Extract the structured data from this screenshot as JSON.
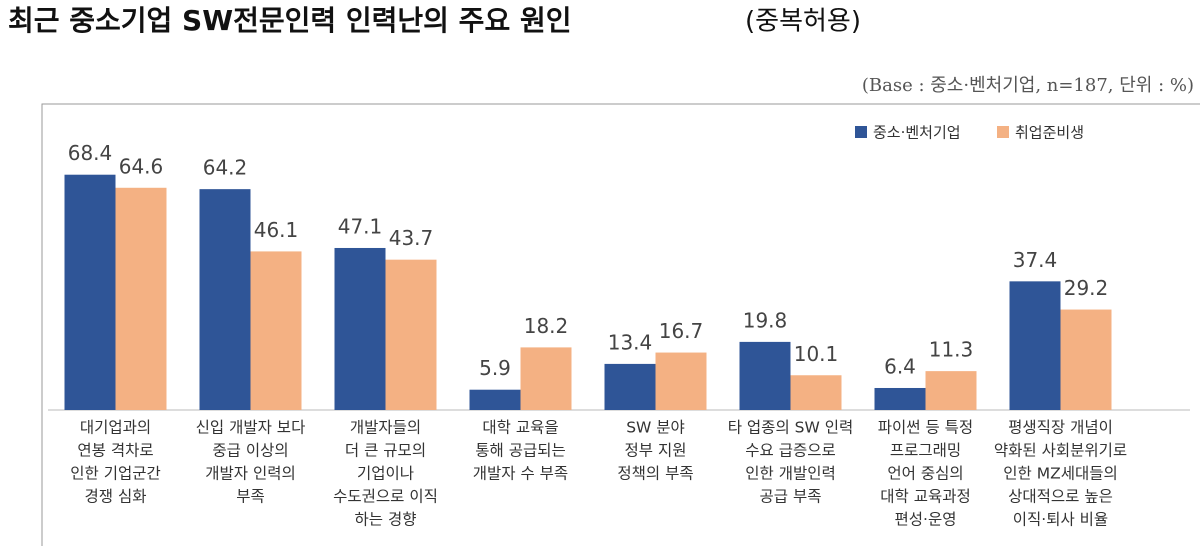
{
  "chart_data": {
    "type": "bar",
    "title": "최근 중소기업 SW전문인력 인력난의 주요 원인",
    "title_suffix": "(중복허용)",
    "note": "(Base : 중소·벤처기업, n=187, 단위 : %)",
    "categories": [
      [
        "대기업과의",
        "연봉 격차로",
        "인한 기업군간",
        "경쟁 심화"
      ],
      [
        "신입 개발자 보다",
        "중급 이상의",
        "개발자 인력의",
        "부족"
      ],
      [
        "개발자들의",
        "더 큰 규모의",
        "기업이나",
        "수도권으로 이직",
        "하는 경향"
      ],
      [
        "대학 교육을",
        "통해 공급되는",
        "개발자 수 부족"
      ],
      [
        "SW 분야",
        "정부 지원",
        "정책의 부족"
      ],
      [
        "타 업종의 SW 인력",
        "수요 급증으로",
        "인한 개발인력",
        "공급 부족"
      ],
      [
        "파이썬 등 특정",
        "프로그래밍",
        "언어 중심의",
        "대학 교육과정",
        "편성·운영"
      ],
      [
        "평생직장 개념이",
        "약화된 사회분위기로",
        "인한 MZ세대들의",
        "상대적으로 높은",
        "이직·퇴사 비율"
      ]
    ],
    "series": [
      {
        "name": "중소·벤처기업",
        "color": "#2f5597",
        "values": [
          68.4,
          64.2,
          47.1,
          5.9,
          13.4,
          19.8,
          6.4,
          37.4
        ]
      },
      {
        "name": "취업준비생",
        "color": "#f4b183",
        "values": [
          64.6,
          46.1,
          43.7,
          18.2,
          16.7,
          10.1,
          11.3,
          29.2
        ]
      }
    ]
  }
}
